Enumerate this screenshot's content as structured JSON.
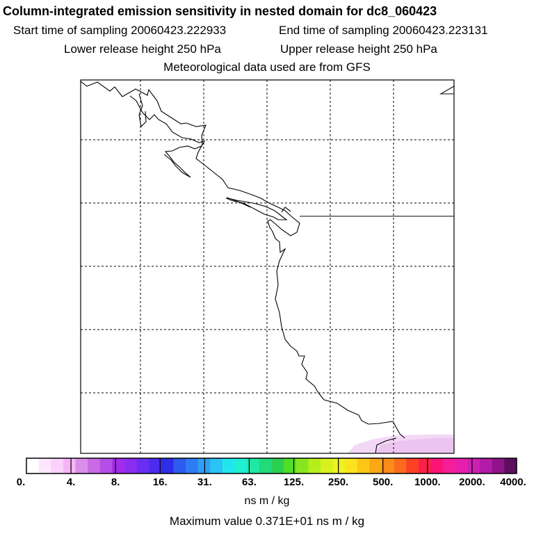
{
  "header": {
    "title": "Column-integrated emission sensitivity in nested domain for dc8_060423",
    "start": "Start time of sampling 20060423.222933",
    "end": "End time of sampling 20060423.223131",
    "lower": "Lower release height  250 hPa",
    "upper": "Upper release height  250 hPa",
    "met": "Meteorological data used are from GFS"
  },
  "map": {
    "grid": "dashed",
    "land_color": "#ffffff",
    "coast_color": "#000000",
    "plume_color": "#f3d6f6"
  },
  "colorbar": {
    "labels": [
      "0.",
      "4.",
      "8.",
      "16.",
      "31.",
      "63.",
      "125.",
      "250.",
      "500.",
      "1000.",
      "2000.",
      "4000."
    ],
    "colors": [
      "#ffffff",
      "#fde6fd",
      "#fbd1fb",
      "#f6b4f6",
      "#d98ee8",
      "#c96be5",
      "#b44ee6",
      "#a22ce8",
      "#8a2df0",
      "#6a2ef2",
      "#4b2cf0",
      "#2e2de8",
      "#2d5bee",
      "#2f7df4",
      "#2fa0f5",
      "#2bc3f4",
      "#22e6ee",
      "#1ef0d0",
      "#1fe8a6",
      "#22d97b",
      "#2ccf52",
      "#52dd28",
      "#86e61f",
      "#b5ee1c",
      "#d8f11f",
      "#eef122",
      "#fbe31d",
      "#fcc617",
      "#fba814",
      "#fb8c18",
      "#fb6a1c",
      "#fb4224",
      "#fb2048",
      "#fb1477",
      "#f51e9a",
      "#e51eae",
      "#cc1fb3",
      "#b21aa8",
      "#8e1488",
      "#5e0e5e"
    ],
    "unit": "ns m / kg"
  },
  "max_value": "Maximum value  0.371E+01 ns m / kg"
}
